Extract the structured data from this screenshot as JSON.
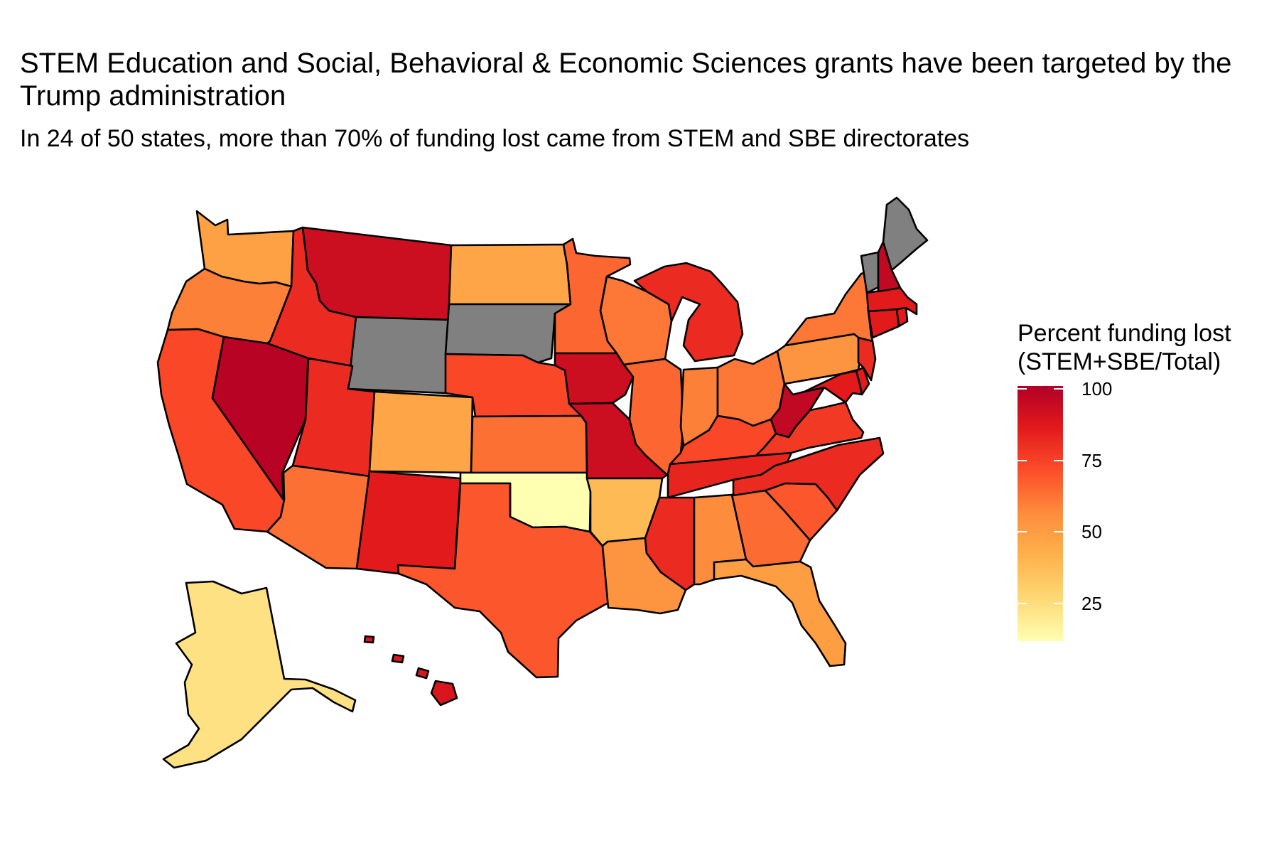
{
  "title_lines": [
    "STEM Education and Social, Behavioral & Economic Sciences grants have been targeted by the",
    "Trump administration"
  ],
  "subtitle": "In 24 of 50 states, more than 70% of funding lost came from STEM and SBE directorates",
  "legend": {
    "title_line1": "Percent funding lost",
    "title_line2": "(STEM+SBE/Total)",
    "ticks": [
      "100",
      "75",
      "50",
      "25"
    ],
    "range": [
      10,
      100
    ],
    "colors": [
      "#ffffb2",
      "#fed976",
      "#feb24c",
      "#fd8d3c",
      "#fc4e2a",
      "#e31a1c",
      "#b10026"
    ]
  },
  "missing_color": "#808080",
  "chart_data": {
    "type": "choropleth",
    "title": "STEM Education and Social, Behavioral & Economic Sciences grants have been targeted by the Trump administration",
    "subtitle": "In 24 of 50 states, more than 70% of funding lost came from STEM and SBE directorates",
    "legend_title": "Percent funding lost (STEM+SBE/Total)",
    "scale": {
      "min": 10,
      "max": 100,
      "ticks": [
        25,
        50,
        75,
        100
      ]
    },
    "values": {
      "WA": 47,
      "OR": 58,
      "CA": 72,
      "NV": 98,
      "ID": 80,
      "MT": 92,
      "WY": null,
      "UT": 80,
      "AZ": 62,
      "CO": 45,
      "NM": 85,
      "ND": 45,
      "SD": null,
      "NE": 72,
      "KS": 62,
      "OK": 10,
      "TX": 68,
      "MN": 64,
      "IA": 92,
      "MO": 92,
      "AR": 37,
      "LA": 52,
      "WI": 60,
      "IL": 64,
      "MI": 80,
      "IN": 58,
      "OH": 60,
      "KY": 72,
      "TN": 82,
      "MS": 80,
      "AL": 55,
      "GA": 63,
      "FL": 48,
      "SC": 68,
      "NC": 80,
      "VA": 76,
      "WV": 95,
      "MD": 85,
      "DE": 85,
      "NJ": 80,
      "PA": 52,
      "NY": 60,
      "CT": 85,
      "RI": 85,
      "MA": 85,
      "VT": null,
      "NH": 95,
      "ME": null,
      "AK": 22,
      "HI": 88
    }
  }
}
